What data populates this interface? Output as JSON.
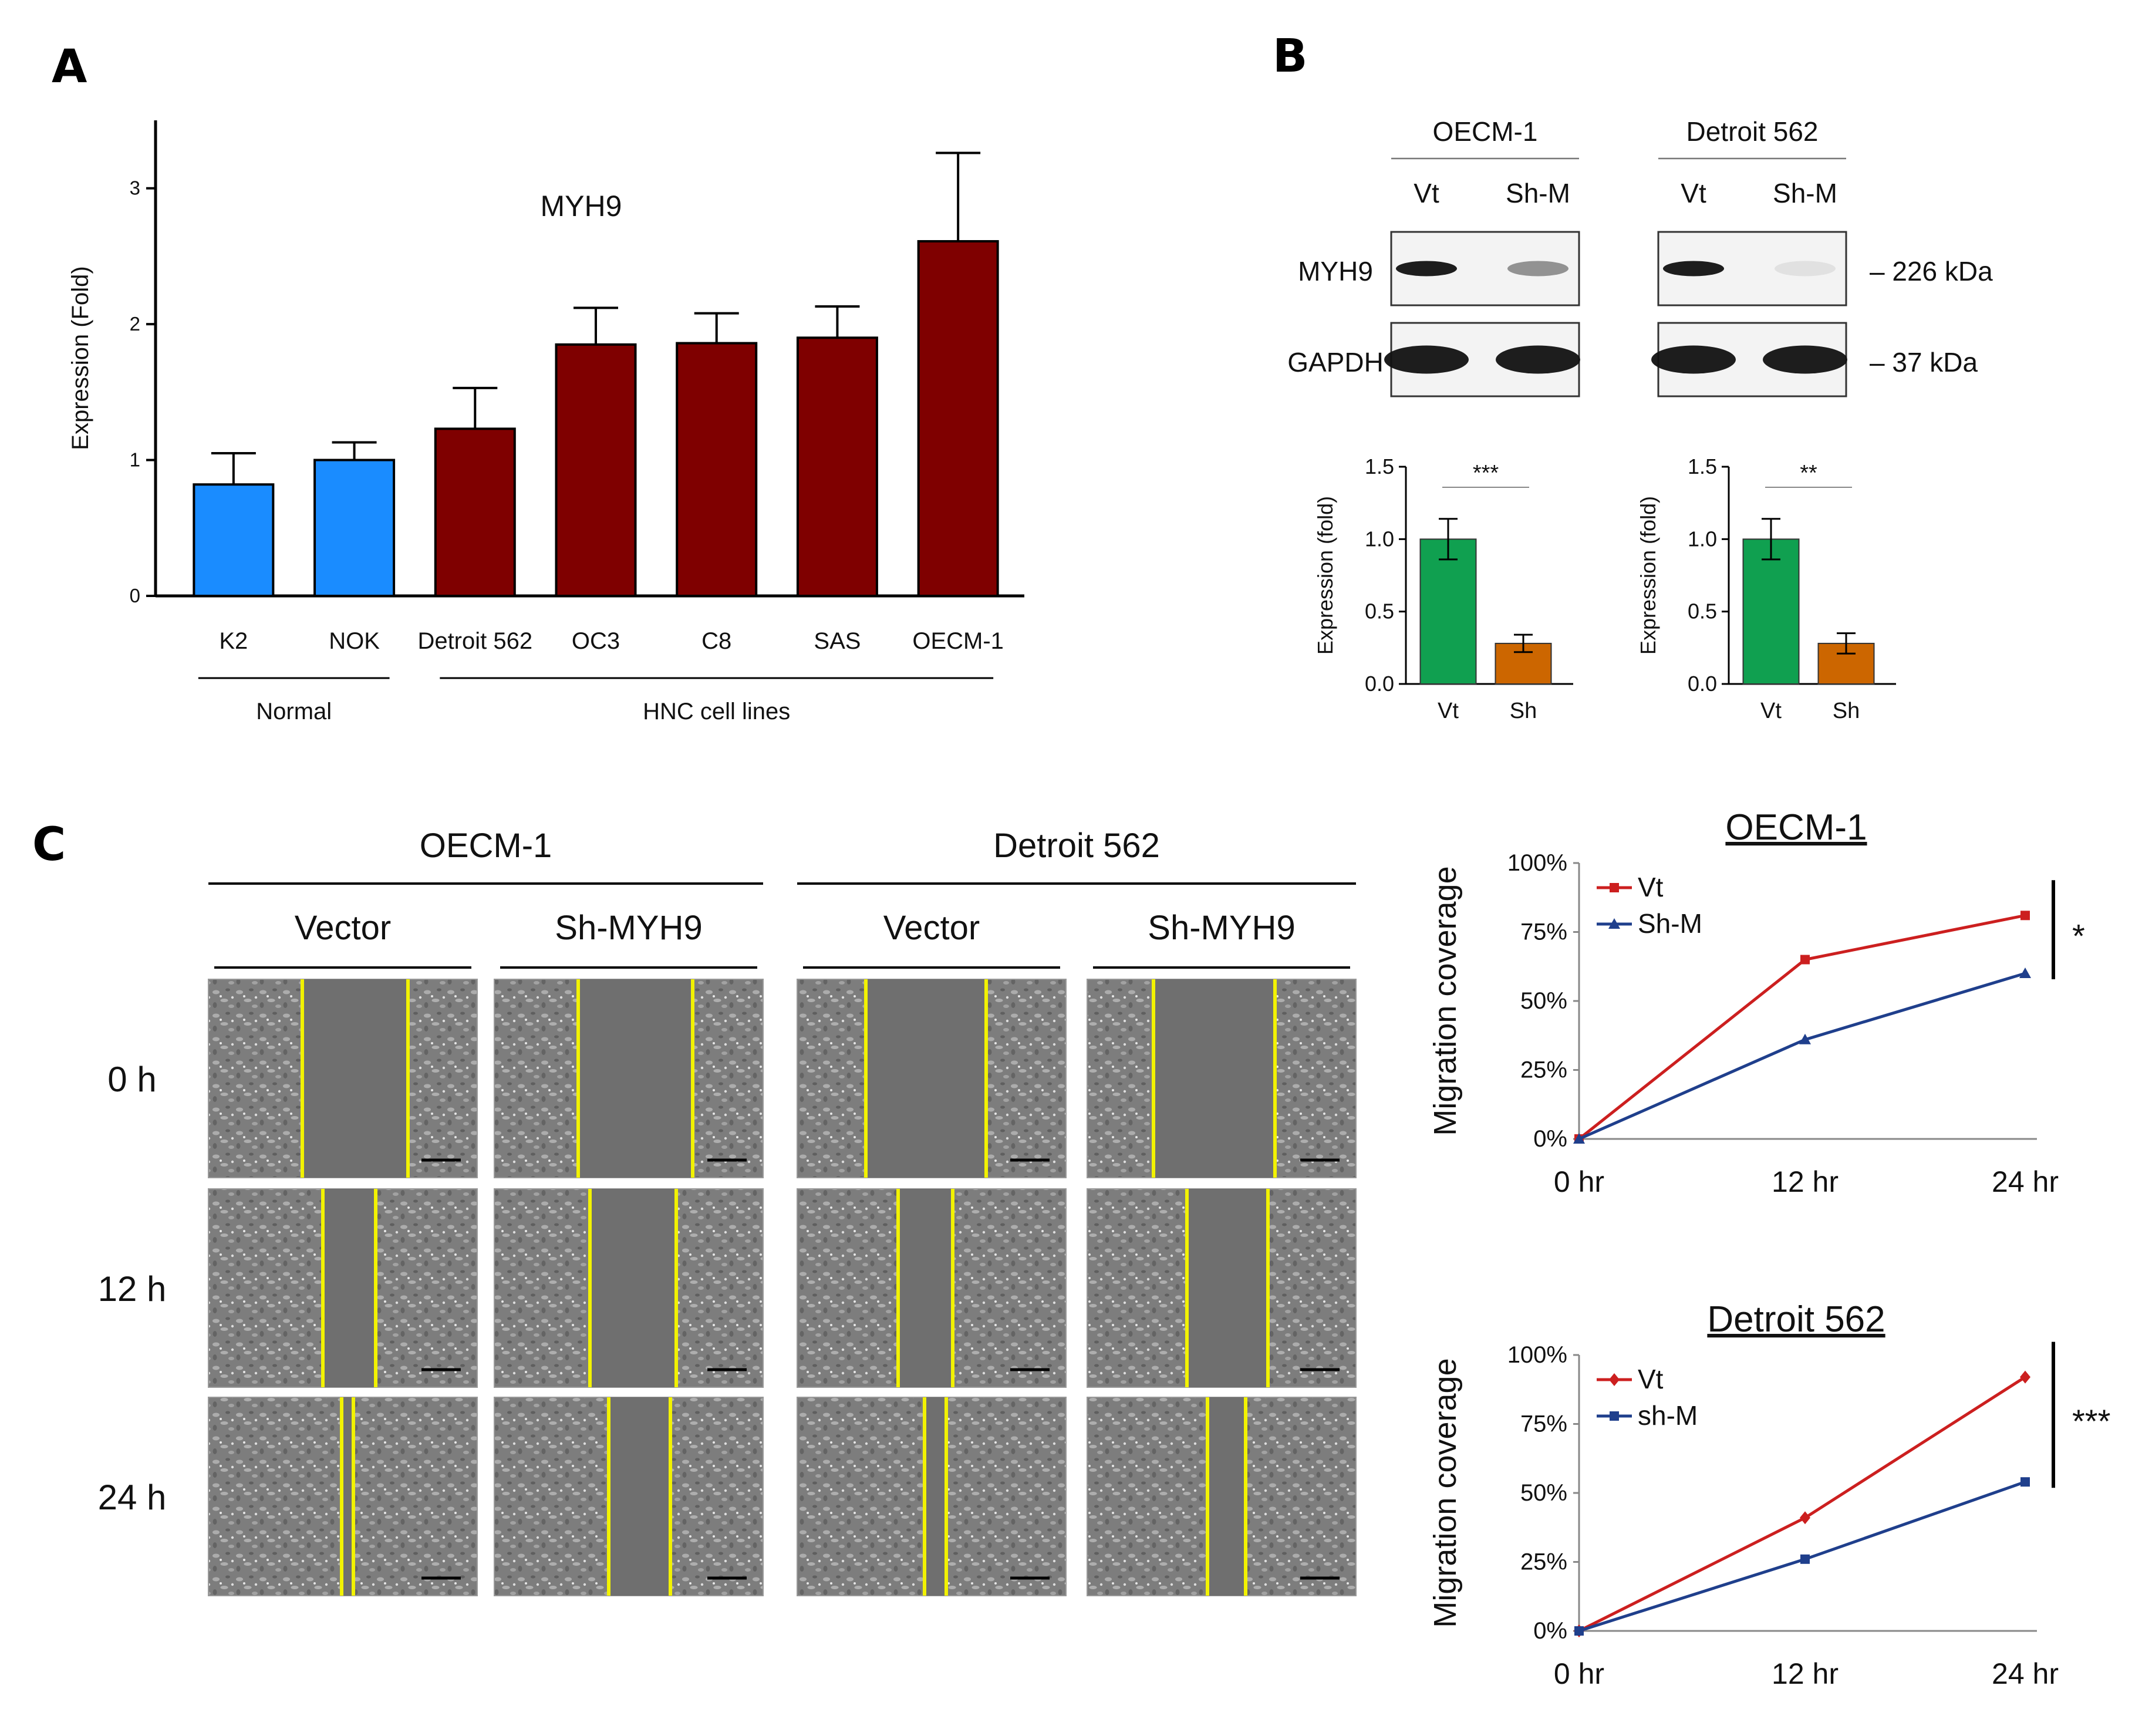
{
  "panels": {
    "A": "A",
    "B": "B",
    "C": "C"
  },
  "chart_data": [
    {
      "id": "A",
      "type": "bar",
      "title": "MYH9",
      "ylabel": "Expression (Fold)",
      "ylim": [
        0,
        3.5
      ],
      "yticks": [
        0,
        1,
        2,
        3
      ],
      "categories": [
        "K2",
        "NOK",
        "Detroit 562",
        "OC3",
        "C8",
        "SAS",
        "OECM-1"
      ],
      "values": [
        0.82,
        1.0,
        1.23,
        1.85,
        1.86,
        1.9,
        2.61
      ],
      "errors": [
        0.23,
        0.13,
        0.3,
        0.27,
        0.22,
        0.23,
        0.65
      ],
      "group_of": [
        "normal",
        "normal",
        "hnc",
        "hnc",
        "hnc",
        "hnc",
        "hnc"
      ],
      "groups": {
        "normal": "Normal",
        "hnc": "HNC cell lines"
      },
      "colors": {
        "normal": "#1a8cff",
        "hnc": "#7f0000"
      },
      "grid": false
    },
    {
      "id": "B-left",
      "type": "bar",
      "ylabel": "Expression (fold)",
      "ylim": [
        0,
        1.5
      ],
      "yticks": [
        "0.0",
        "0.5",
        "1.0",
        "1.5"
      ],
      "categories": [
        "Vt",
        "Sh"
      ],
      "values": [
        1.0,
        0.28
      ],
      "errors": [
        0.14,
        0.06
      ],
      "colors": [
        "#10a050",
        "#cc6600"
      ],
      "significance": "***"
    },
    {
      "id": "B-right",
      "type": "bar",
      "ylabel": "Expression (fold)",
      "ylim": [
        0,
        1.5
      ],
      "yticks": [
        "0.0",
        "0.5",
        "1.0",
        "1.5"
      ],
      "categories": [
        "Vt",
        "Sh"
      ],
      "values": [
        1.0,
        0.28
      ],
      "errors": [
        0.14,
        0.07
      ],
      "colors": [
        "#10a050",
        "#cc6600"
      ],
      "significance": "**"
    },
    {
      "id": "C-top",
      "type": "line",
      "title": "OECM-1",
      "ylabel": "Migration coverage",
      "x": [
        "0 hr",
        "12 hr",
        "24 hr"
      ],
      "ylim": [
        0,
        100
      ],
      "yticks": [
        "0%",
        "25%",
        "50%",
        "75%",
        "100%"
      ],
      "series": [
        {
          "name": "Vt",
          "values": [
            0,
            65,
            81
          ],
          "color": "#cc1f1f",
          "marker": "square"
        },
        {
          "name": "Sh-M",
          "values": [
            0,
            36,
            60
          ],
          "color": "#1f3f8c",
          "marker": "triangle"
        }
      ],
      "legend": "top-left",
      "significance": "*"
    },
    {
      "id": "C-bottom",
      "type": "line",
      "title": "Detroit 562",
      "ylabel": "Migration coverage",
      "x": [
        "0 hr",
        "12 hr",
        "24 hr"
      ],
      "ylim": [
        0,
        100
      ],
      "yticks": [
        "0%",
        "25%",
        "50%",
        "75%",
        "100%"
      ],
      "series": [
        {
          "name": "Vt",
          "values": [
            0,
            41,
            92
          ],
          "color": "#cc1f1f",
          "marker": "diamond"
        },
        {
          "name": "sh-M",
          "values": [
            0,
            26,
            54
          ],
          "color": "#1f3f8c",
          "marker": "square"
        }
      ],
      "legend": "top-left",
      "significance": "***"
    }
  ],
  "western_blot": {
    "groups": [
      "OECM-1",
      "Detroit 562"
    ],
    "lanes": [
      "Vt",
      "Sh-M"
    ],
    "rows": [
      "MYH9",
      "GAPDH"
    ],
    "markers": [
      "– 226 kDa",
      "– 37 kDa"
    ],
    "band_intensity": {
      "OECM-1": {
        "MYH9": [
          1.0,
          0.45
        ],
        "GAPDH": [
          1.0,
          1.0
        ]
      },
      "Detroit 562": {
        "MYH9": [
          1.0,
          0.08
        ],
        "GAPDH": [
          1.0,
          1.0
        ]
      }
    }
  },
  "scratch_assay": {
    "cell_lines": [
      "OECM-1",
      "Detroit 562"
    ],
    "conditions": [
      "Vector",
      "Sh-MYH9"
    ],
    "timepoints": [
      "0 h",
      "12 h",
      "24 h"
    ]
  }
}
